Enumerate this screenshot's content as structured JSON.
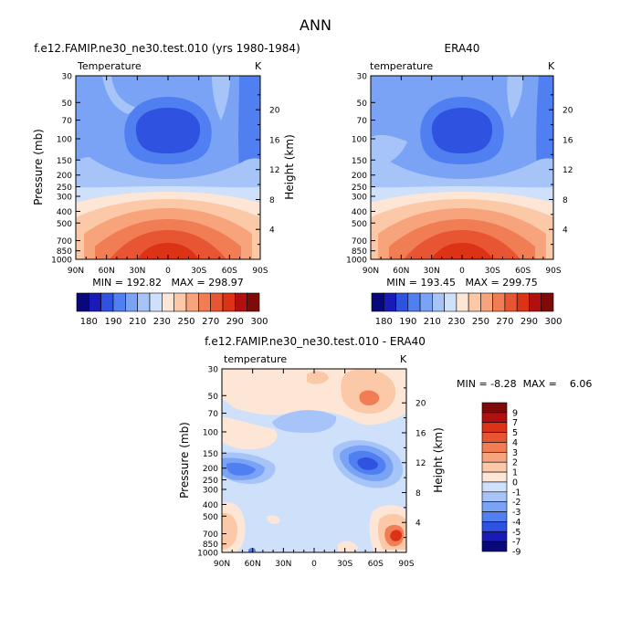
{
  "page_title": "ANN",
  "colors": {
    "scale": [
      "#08087a",
      "#1a1ab8",
      "#2f52e0",
      "#4f7ff0",
      "#7aa3f5",
      "#a6c4f8",
      "#cfe0fb",
      "#fde6d6",
      "#fbc8a8",
      "#f7a47c",
      "#f07d54",
      "#e85532",
      "#dc3216",
      "#b21010",
      "#7e0a0a"
    ]
  },
  "chart_data": [
    {
      "type": "contour",
      "title": "f.e12.FAMIP.ne30_ne30.test.010 (yrs 1980-1984)",
      "variable": "Temperature",
      "units": "K",
      "ylabel": "Pressure (mb)",
      "ylabel_right": "Height (km)",
      "x_ticks": [
        "90N",
        "60N",
        "30N",
        "0",
        "30S",
        "60S",
        "90S"
      ],
      "y_ticks": [
        "30",
        "50",
        "70",
        "100",
        "150",
        "200",
        "250",
        "300",
        "400",
        "500",
        "700",
        "850",
        "1000"
      ],
      "height_ticks": [
        "20",
        "16",
        "12",
        "8",
        "4"
      ],
      "stats": "MIN = 192.82   MAX = 298.97",
      "min": 192.82,
      "max": 298.97,
      "colorbar_labels": [
        "180",
        "190",
        "210",
        "230",
        "250",
        "270",
        "290",
        "300"
      ]
    },
    {
      "type": "contour",
      "title": "ERA40",
      "variable": "temperature",
      "units": "K",
      "x_ticks": [
        "90N",
        "60N",
        "30N",
        "0",
        "30S",
        "60S",
        "90S"
      ],
      "y_ticks": [
        "30",
        "50",
        "70",
        "100",
        "150",
        "200",
        "250",
        "300",
        "400",
        "500",
        "700",
        "850",
        "1000"
      ],
      "height_ticks": [
        "20",
        "16",
        "12",
        "8",
        "4"
      ],
      "stats": "MIN = 193.45   MAX = 299.75",
      "min": 193.45,
      "max": 299.75,
      "colorbar_labels": [
        "180",
        "190",
        "210",
        "230",
        "250",
        "270",
        "290",
        "300"
      ]
    },
    {
      "type": "contour",
      "title": "f.e12.FAMIP.ne30_ne30.test.010 - ERA40",
      "variable": "temperature",
      "units": "K",
      "ylabel": "Pressure (mb)",
      "ylabel_right": "Height (km)",
      "x_ticks": [
        "90N",
        "60N",
        "30N",
        "0",
        "30S",
        "60S",
        "90S"
      ],
      "y_ticks": [
        "30",
        "50",
        "70",
        "100",
        "150",
        "200",
        "250",
        "300",
        "400",
        "500",
        "700",
        "850",
        "1000"
      ],
      "height_ticks": [
        "20",
        "16",
        "12",
        "8",
        "4"
      ],
      "stats": "MIN = -8.28  MAX =    6.06",
      "min": -8.28,
      "max": 6.06,
      "colorbar_labels": [
        "9",
        "7",
        "5",
        "4",
        "3",
        "2",
        "1",
        "0",
        "-1",
        "-2",
        "-3",
        "-4",
        "-5",
        "-7",
        "-9"
      ]
    }
  ]
}
